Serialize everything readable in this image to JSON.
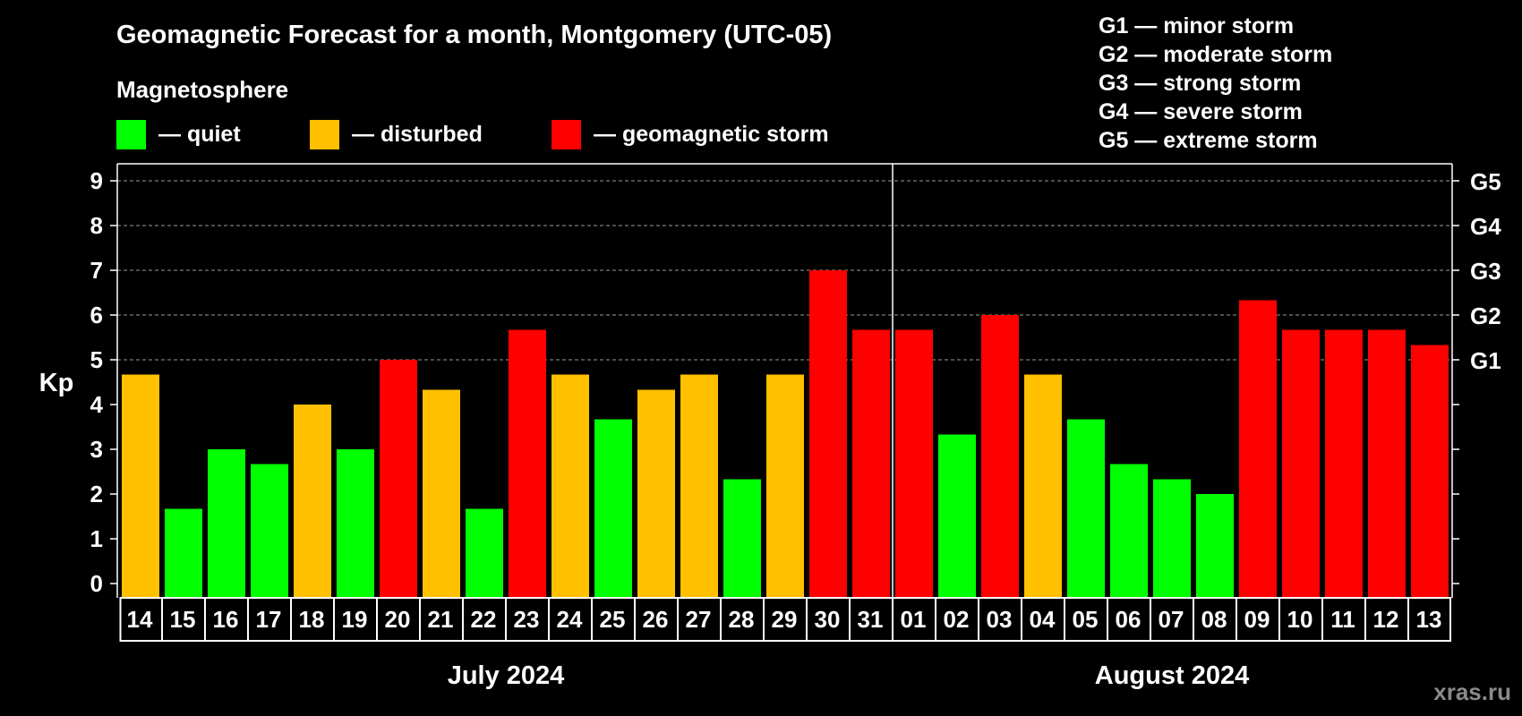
{
  "chart_data": {
    "type": "bar",
    "title": "Geomagnetic Forecast for a month, Montgomery (UTC-05)",
    "subtitle": "Magnetosphere",
    "ylabel": "Kp",
    "ylim": [
      0,
      9
    ],
    "yticks": [
      "0",
      "1",
      "2",
      "3",
      "4",
      "5",
      "6",
      "7",
      "8",
      "9"
    ],
    "right_ticks": [
      {
        "value": 5,
        "label": "G1"
      },
      {
        "value": 6,
        "label": "G2"
      },
      {
        "value": 7,
        "label": "G3"
      },
      {
        "value": 8,
        "label": "G4"
      },
      {
        "value": 9,
        "label": "G5"
      }
    ],
    "legend": [
      {
        "label": "— quiet",
        "color": "#00ff00"
      },
      {
        "label": "— disturbed",
        "color": "#ffc000"
      },
      {
        "label": "— geomagnetic storm",
        "color": "#ff0000"
      }
    ],
    "storm_levels": [
      "G1 — minor storm",
      "G2 — moderate storm",
      "G3 — strong storm",
      "G4 — severe storm",
      "G5 — extreme storm"
    ],
    "categories": [
      "14",
      "15",
      "16",
      "17",
      "18",
      "19",
      "20",
      "21",
      "22",
      "23",
      "24",
      "25",
      "26",
      "27",
      "28",
      "29",
      "30",
      "31",
      "01",
      "02",
      "03",
      "04",
      "05",
      "06",
      "07",
      "08",
      "09",
      "10",
      "11",
      "12",
      "13"
    ],
    "values": [
      4.67,
      1.67,
      3.0,
      2.67,
      4.0,
      3.0,
      5.0,
      4.33,
      1.67,
      5.67,
      4.67,
      3.67,
      4.33,
      4.67,
      2.33,
      4.67,
      7.0,
      5.67,
      5.67,
      3.33,
      6.0,
      4.67,
      3.67,
      2.67,
      2.33,
      2.0,
      6.33,
      5.67,
      5.67,
      5.67,
      5.33
    ],
    "months": [
      {
        "label": "July 2024",
        "first_index": 0,
        "last_index": 17
      },
      {
        "label": "August 2024",
        "first_index": 18,
        "last_index": 30
      }
    ],
    "colors": {
      "quiet": "#00ff00",
      "disturbed": "#ffc000",
      "storm": "#ff0000",
      "grid": "#9a9a9a",
      "axis": "#ffffff"
    }
  },
  "watermark": "xras.ru"
}
